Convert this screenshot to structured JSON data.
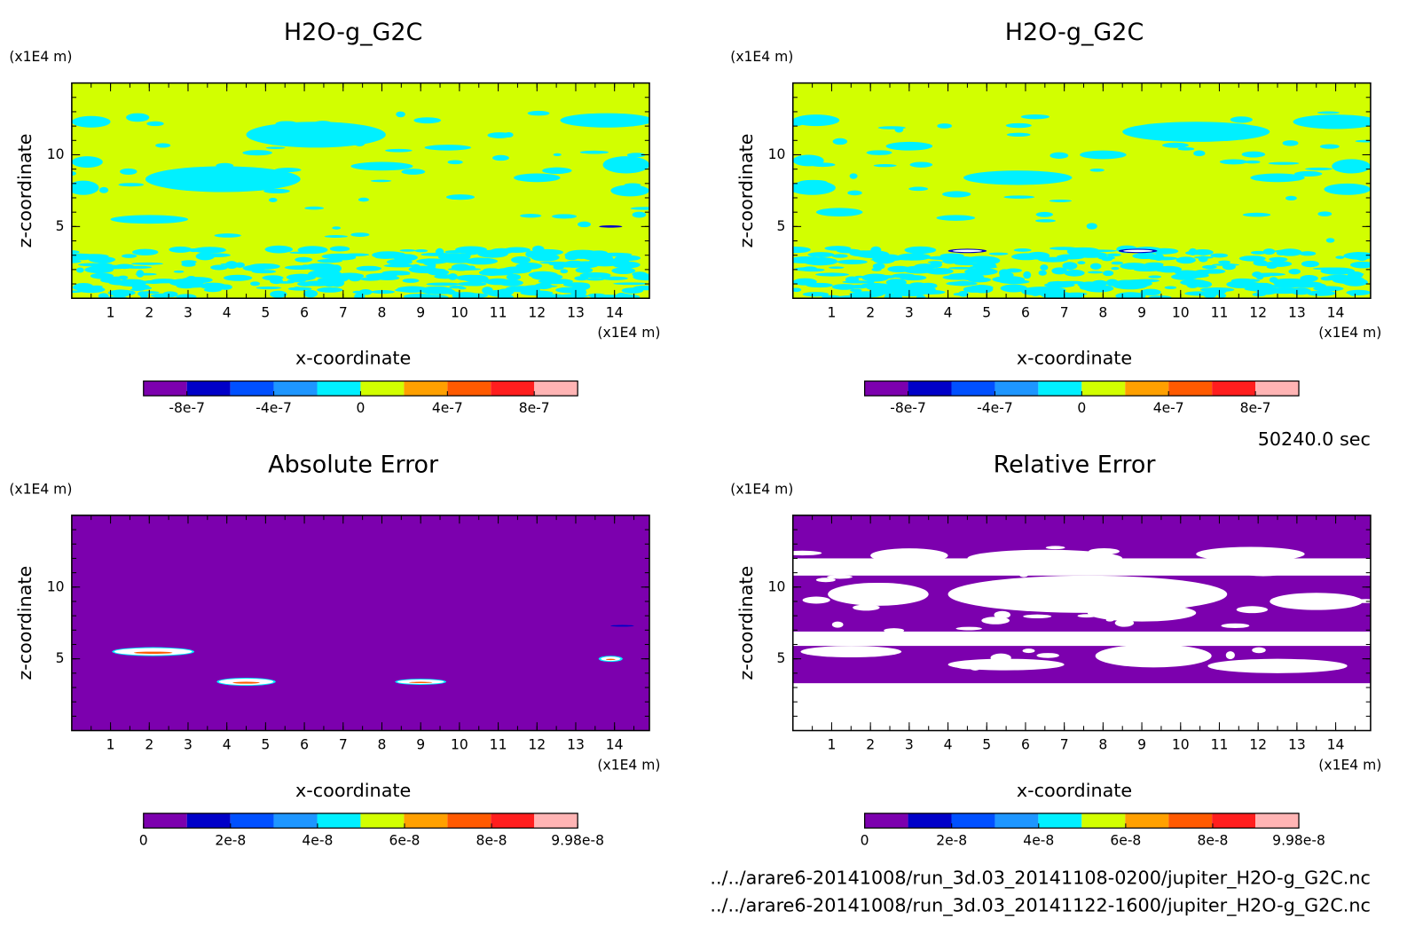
{
  "chart_data": [
    {
      "type": "contour",
      "title": "H2O-g_G2C",
      "x_label": "x-coordinate",
      "y_label": "z-coordinate",
      "x_unit": "(x1E4 m)",
      "y_unit": "(x1E4 m)",
      "xlim": [
        0,
        14.9
      ],
      "ylim": [
        0,
        15
      ],
      "xticks": [
        1,
        2,
        3,
        4,
        5,
        6,
        7,
        8,
        9,
        10,
        11,
        12,
        13,
        14
      ],
      "yticks": [
        5,
        10
      ],
      "colorbar": {
        "levels": [
          -1e-06,
          -8e-07,
          -6e-07,
          -4e-07,
          -2e-07,
          0,
          2e-07,
          4e-07,
          6e-07,
          8e-07,
          1e-06
        ],
        "colors": [
          "#7c00ae",
          "#0000c8",
          "#0050ff",
          "#1e96ff",
          "#00f0ff",
          "#d2ff00",
          "#ffa000",
          "#ff5a00",
          "#ff1e1e",
          "#ffb4b4"
        ],
        "ticks": [
          -8e-07,
          -4e-07,
          0,
          4e-07,
          8e-07
        ]
      }
    },
    {
      "type": "contour",
      "title": "H2O-g_G2C",
      "x_label": "x-coordinate",
      "y_label": "z-coordinate",
      "x_unit": "(x1E4 m)",
      "y_unit": "(x1E4 m)",
      "xlim": [
        0,
        14.9
      ],
      "ylim": [
        0,
        15
      ],
      "xticks": [
        1,
        2,
        3,
        4,
        5,
        6,
        7,
        8,
        9,
        10,
        11,
        12,
        13,
        14
      ],
      "yticks": [
        5,
        10
      ],
      "colorbar": {
        "levels": [
          -1e-06,
          -8e-07,
          -6e-07,
          -4e-07,
          -2e-07,
          0,
          2e-07,
          4e-07,
          6e-07,
          8e-07,
          1e-06
        ],
        "colors": [
          "#7c00ae",
          "#0000c8",
          "#0050ff",
          "#1e96ff",
          "#00f0ff",
          "#d2ff00",
          "#ffa000",
          "#ff5a00",
          "#ff1e1e",
          "#ffb4b4"
        ],
        "ticks": [
          -8e-07,
          -4e-07,
          0,
          4e-07,
          8e-07
        ]
      }
    },
    {
      "type": "contour",
      "title": "Absolute Error",
      "x_label": "x-coordinate",
      "y_label": "z-coordinate",
      "x_unit": "(x1E4 m)",
      "y_unit": "(x1E4 m)",
      "xlim": [
        0,
        14.9
      ],
      "ylim": [
        0,
        15
      ],
      "xticks": [
        1,
        2,
        3,
        4,
        5,
        6,
        7,
        8,
        9,
        10,
        11,
        12,
        13,
        14
      ],
      "yticks": [
        5,
        10
      ],
      "colorbar": {
        "levels": [
          0,
          9.98e-09,
          1.996e-08,
          2.994e-08,
          3.992e-08,
          4.99e-08,
          5.988e-08,
          6.986e-08,
          7.984e-08,
          8.982e-08,
          9.98e-08
        ],
        "colors": [
          "#7c00ae",
          "#0000c8",
          "#0050ff",
          "#1e96ff",
          "#00f0ff",
          "#d2ff00",
          "#ffa000",
          "#ff5a00",
          "#ff1e1e",
          "#ffb4b4"
        ],
        "ticks": [
          0,
          2e-08,
          4e-08,
          6e-08,
          8e-08,
          9.98e-08
        ]
      }
    },
    {
      "type": "contour",
      "title": "Relative Error",
      "x_label": "x-coordinate",
      "y_label": "z-coordinate",
      "x_unit": "(x1E4 m)",
      "y_unit": "(x1E4 m)",
      "xlim": [
        0,
        14.9
      ],
      "ylim": [
        0,
        15
      ],
      "xticks": [
        1,
        2,
        3,
        4,
        5,
        6,
        7,
        8,
        9,
        10,
        11,
        12,
        13,
        14
      ],
      "yticks": [
        5,
        10
      ],
      "colorbar": {
        "levels": [
          0,
          9.98e-09,
          1.996e-08,
          2.994e-08,
          3.992e-08,
          4.99e-08,
          5.988e-08,
          6.986e-08,
          7.984e-08,
          8.982e-08,
          9.98e-08
        ],
        "colors": [
          "#7c00ae",
          "#0000c8",
          "#0050ff",
          "#1e96ff",
          "#00f0ff",
          "#d2ff00",
          "#ffa000",
          "#ff5a00",
          "#ff1e1e",
          "#ffb4b4"
        ],
        "ticks": [
          0,
          2e-08,
          4e-08,
          6e-08,
          8e-08,
          9.98e-08
        ]
      }
    }
  ],
  "time_label": "50240.0 sec",
  "files": [
    "../../arare6-20141008/run_3d.03_20141108-0200/jupiter_H2O-g_G2C.nc",
    "../../arare6-20141008/run_3d.03_20141122-1600/jupiter_H2O-g_G2C.nc"
  ]
}
